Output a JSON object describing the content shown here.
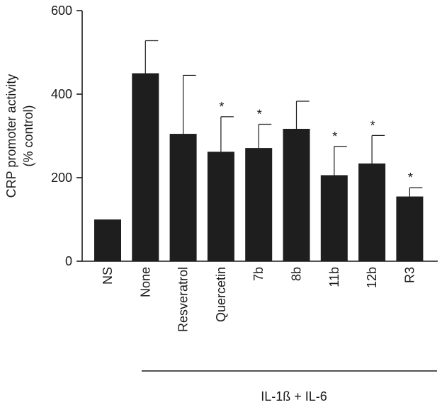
{
  "chart_data": {
    "type": "bar",
    "categories": [
      "NS",
      "None",
      "Resveratrol",
      "Quercetin",
      "7b",
      "8b",
      "11b",
      "12b",
      "R3"
    ],
    "values": [
      100,
      450,
      305,
      262,
      271,
      317,
      206,
      234,
      155
    ],
    "error": [
      0,
      78,
      140,
      84,
      57,
      66,
      69,
      67,
      21
    ],
    "significance": [
      "",
      "",
      "",
      "*",
      "*",
      "",
      "*",
      "*",
      "*"
    ],
    "ylabel_line1": "CRP promoter activity",
    "ylabel_line2": "(% control)",
    "ylim": [
      0,
      600
    ],
    "yticks": [
      0,
      200,
      400,
      600
    ],
    "treatment_label": "IL-1ß + IL-6",
    "grid": false,
    "colors": {
      "bar": "#1e1e1e",
      "axis": "#1a1a1a"
    }
  }
}
